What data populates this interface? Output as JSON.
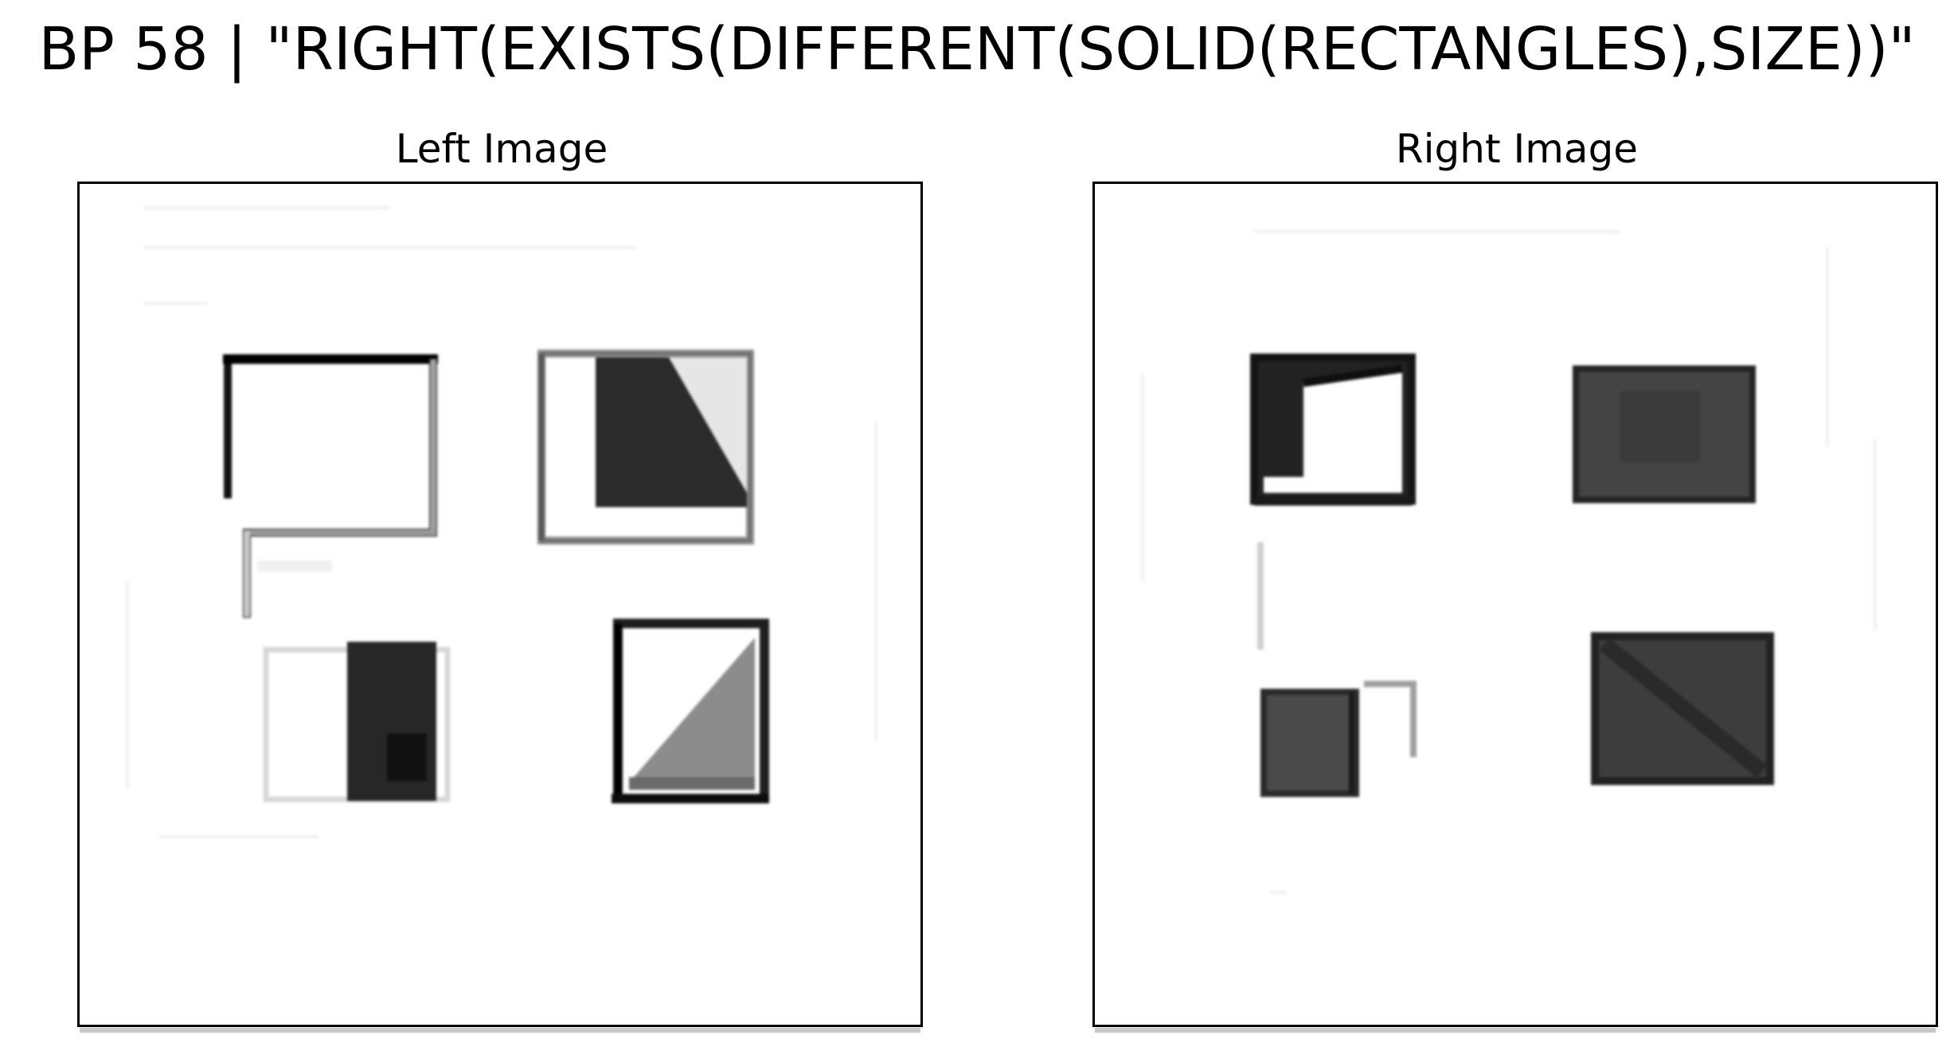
{
  "figure": {
    "title": "BP 58 | \"RIGHT(EXISTS(DIFFERENT(SOLID(RECTANGLES),SIZE))\""
  },
  "left_panel": {
    "title": "Left Image",
    "shapes": [
      "outline-rectangle-with-gap",
      "square-with-dark-triangle",
      "solid-rectangle",
      "square-with-gray-triangle"
    ]
  },
  "right_panel": {
    "title": "Right Image",
    "shapes": [
      "square-with-l-notch",
      "solid-rectangle-large",
      "solid-square-small",
      "solid-rectangle-large"
    ]
  },
  "colors": {
    "ink": "#000000",
    "dark_fill": "#2b2b2b",
    "mid_fill": "#444444",
    "gray_fill": "#8c8c8c",
    "light_fill": "#e6e6e6",
    "faint_stroke": "#d9d9d9"
  }
}
